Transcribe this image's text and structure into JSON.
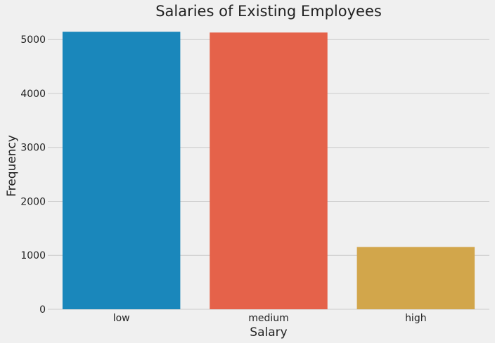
{
  "chart_data": {
    "type": "bar",
    "title": "Salaries of Existing Employees",
    "xlabel": "Salary",
    "ylabel": "Frequency",
    "categories": [
      "low",
      "medium",
      "high"
    ],
    "values": [
      5144,
      5129,
      1155
    ],
    "colors": [
      "#1a87bb",
      "#e5624a",
      "#d2a64b"
    ],
    "ylim": [
      0,
      5250
    ],
    "yticks": [
      0,
      1000,
      2000,
      3000,
      4000,
      5000
    ],
    "grid": "y",
    "legend": "none"
  },
  "theme": {
    "background": "#f0f0f0",
    "grid_color": "#cbcbcb",
    "text_color": "#222222"
  }
}
